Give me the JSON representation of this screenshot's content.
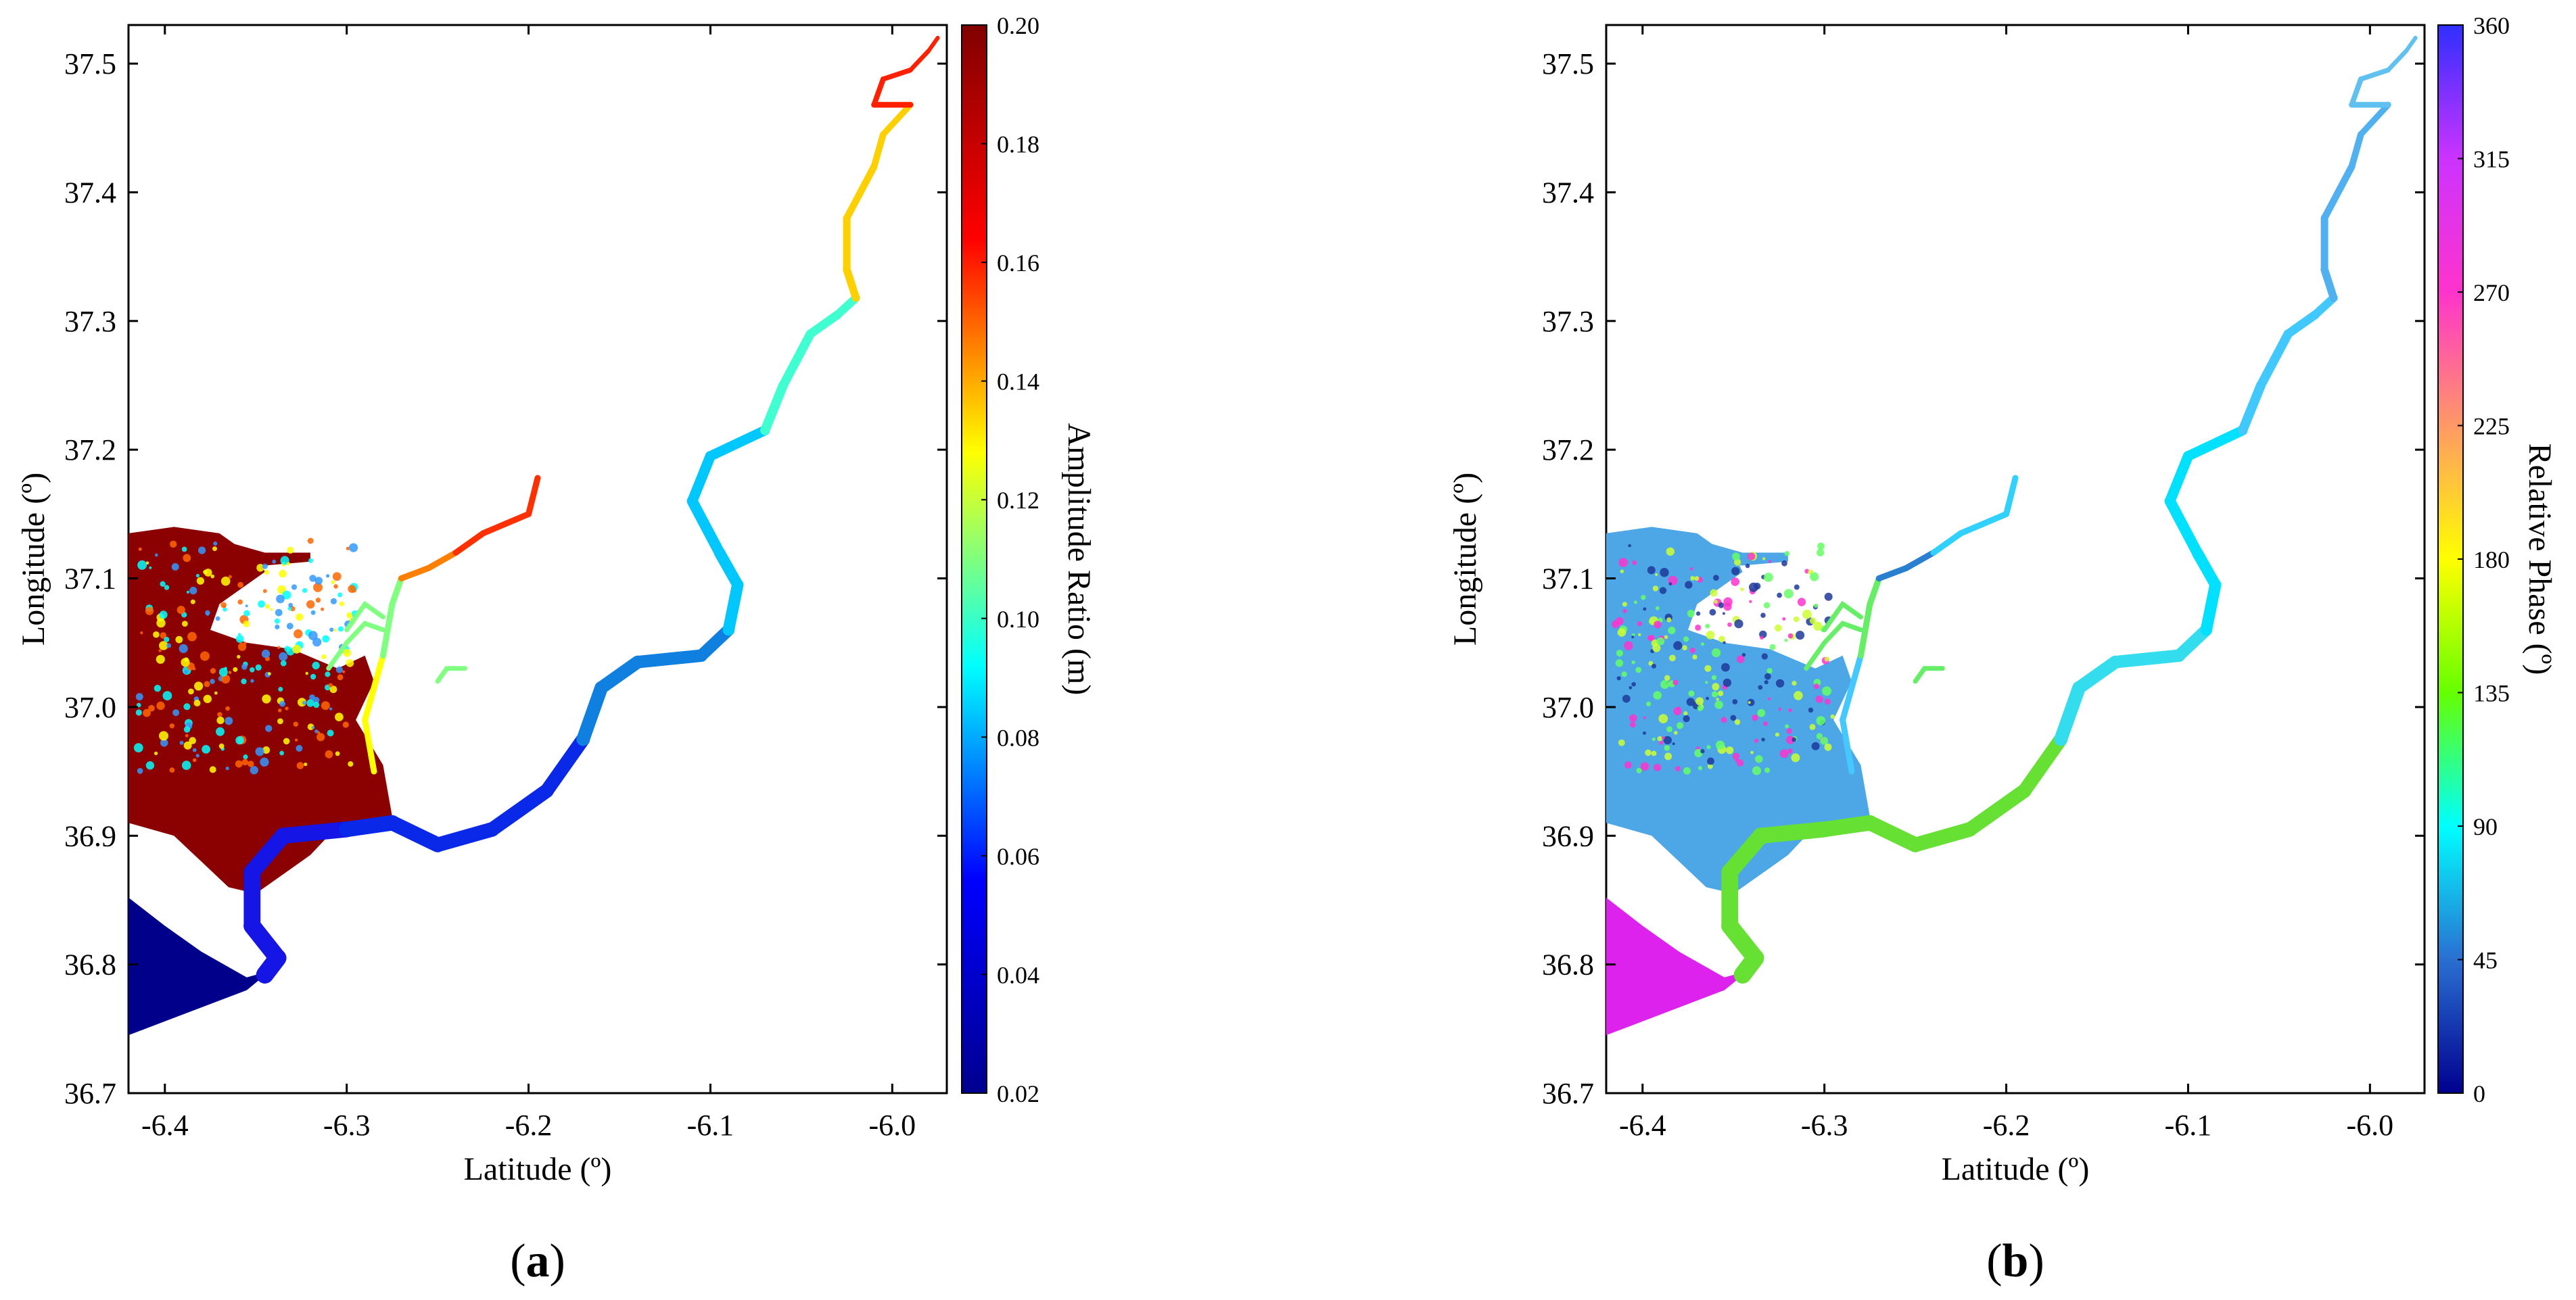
{
  "panels": [
    {
      "id": "a",
      "letter": "a",
      "xlabel": "Latitude (º)",
      "ylabel": "Longitude (º)",
      "x_ticks": [
        "-6.4",
        "-6.3",
        "-6.2",
        "-6.1",
        "-6.0"
      ],
      "y_ticks": [
        "36.7",
        "36.8",
        "36.9",
        "37.0",
        "37.1",
        "37.2",
        "37.3",
        "37.4",
        "37.5"
      ],
      "colorbar": {
        "title": "Amplitude Ratio (m)",
        "ticks": [
          "0.02",
          "0.04",
          "0.06",
          "0.08",
          "0.10",
          "0.12",
          "0.14",
          "0.16",
          "0.18",
          "0.20"
        ],
        "range": [
          0.02,
          0.2
        ],
        "colormap": [
          "#00008f",
          "#0000ff",
          "#00ffff",
          "#ffff00",
          "#ff0000",
          "#800000"
        ]
      },
      "region_colors": {
        "marsh_fill": "#8b0000",
        "ocean_fill": "#00008b",
        "speckle": [
          "#ffff00",
          "#00ffff",
          "#3399ff",
          "#ff6600"
        ],
        "main_channel": [
          "#1515e6",
          "#0a28e8",
          "#1080e0",
          "#00c8ff",
          "#40ffd0",
          "#ffd000",
          "#ff2000"
        ],
        "branch_channel": [
          "#ffff00",
          "#80ff80",
          "#ff8000",
          "#ff3000"
        ]
      }
    },
    {
      "id": "b",
      "letter": "b",
      "xlabel": "Latitude (º)",
      "ylabel": "Longitude (º)",
      "x_ticks": [
        "-6.4",
        "-6.3",
        "-6.2",
        "-6.1",
        "-6.0"
      ],
      "y_ticks": [
        "36.7",
        "36.8",
        "36.9",
        "37.0",
        "37.1",
        "37.2",
        "37.3",
        "37.4",
        "37.5"
      ],
      "colorbar": {
        "title": "Relative Phase (º)",
        "ticks": [
          "0",
          "45",
          "90",
          "135",
          "180",
          "225",
          "270",
          "315",
          "360"
        ],
        "range": [
          0,
          360
        ],
        "colormap": [
          "#00008f",
          "#2a6fd1",
          "#00ffff",
          "#66ff00",
          "#ffff00",
          "#ff9966",
          "#ff33cc",
          "#cc33ff",
          "#2f2fff"
        ]
      },
      "region_colors": {
        "marsh_fill": "#4da6e6",
        "ocean_fill": "#dd22ee",
        "speckle": [
          "#ccff33",
          "#66ff66",
          "#ff33cc",
          "#1e3a9a"
        ],
        "main_channel": [
          "#66e033",
          "#66e033",
          "#33ddee",
          "#00e0ff",
          "#40c8ff",
          "#50b0f0",
          "#60c0f0"
        ],
        "branch_channel": [
          "#44c8ff",
          "#66ee66",
          "#2a7fd0",
          "#30d0ff"
        ]
      }
    }
  ]
}
